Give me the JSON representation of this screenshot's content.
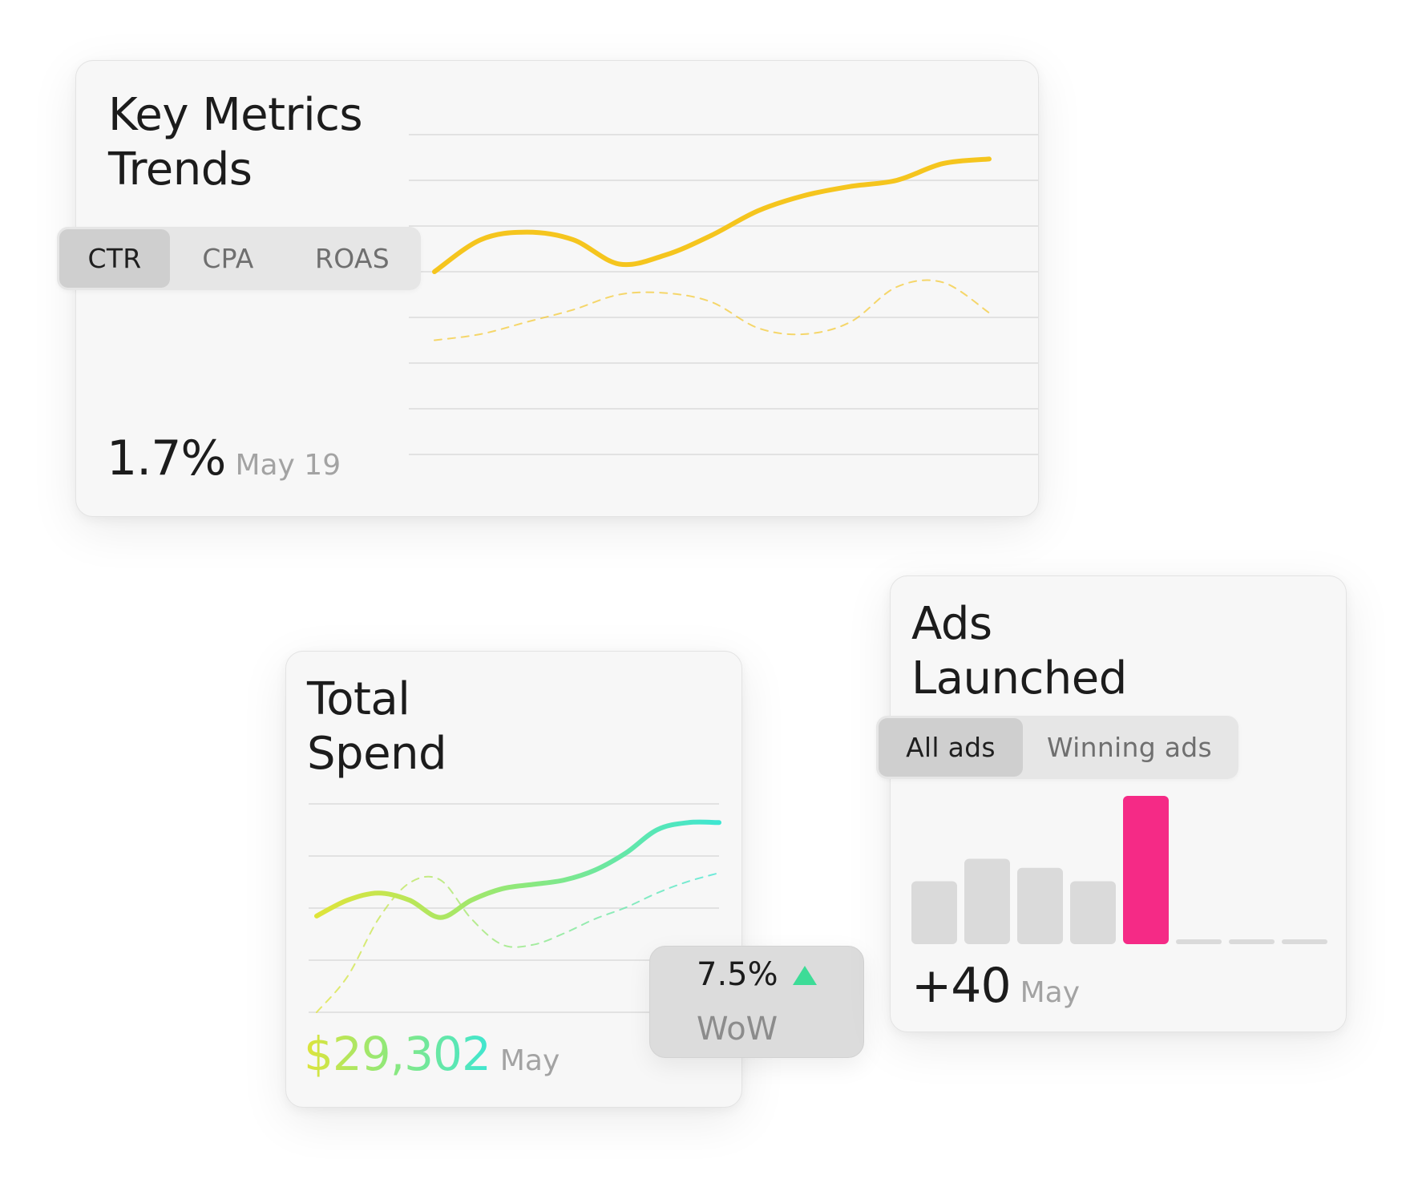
{
  "key_metrics": {
    "title_line1": "Key Metrics",
    "title_line2": "Trends",
    "tabs": [
      {
        "label": "CTR",
        "active": true
      },
      {
        "label": "CPA",
        "active": false
      },
      {
        "label": "ROAS",
        "active": false
      }
    ],
    "value": "1.7%",
    "value_date": "May 19",
    "line_color": "#F5C51E"
  },
  "total_spend": {
    "title_line1": "Total",
    "title_line2": "Spend",
    "value": "$29,302",
    "value_period": "May",
    "change_badge": {
      "value": "7.5%",
      "label": "WoW",
      "direction": "up",
      "up_color": "#3DDC97"
    },
    "gradient_colors": [
      "#DFE43A",
      "#8FE87A",
      "#3EE6D2"
    ]
  },
  "ads_launched": {
    "title_line1": "Ads",
    "title_line2": "Launched",
    "tabs": [
      {
        "label": "All ads",
        "active": true
      },
      {
        "label": "Winning ads",
        "active": false
      }
    ],
    "value": "+40",
    "value_period": "May",
    "highlight_color": "#F52A86",
    "bar_color": "#DADADA"
  },
  "chart_data": [
    {
      "type": "line",
      "title": "Key Metrics Trends",
      "x": [
        1,
        2,
        3,
        4,
        5,
        6,
        7,
        8,
        9,
        10,
        11,
        12,
        13
      ],
      "series": [
        {
          "style": "solid",
          "values": [
            20,
            41,
            46,
            41,
            25,
            31,
            44,
            60,
            70,
            76,
            80,
            91,
            94
          ]
        },
        {
          "style": "dashed",
          "values": [
            -25,
            -21,
            -13,
            -5,
            5,
            6,
            0,
            -17,
            -21,
            -13,
            10,
            13,
            -7
          ]
        }
      ],
      "grid": true
    },
    {
      "type": "line",
      "title": "Total Spend",
      "x": [
        1,
        2,
        3,
        4,
        5,
        6,
        7,
        8,
        9,
        10,
        11,
        12,
        13,
        14
      ],
      "series": [
        {
          "style": "solid",
          "values": [
            22,
            33,
            38,
            33,
            21,
            33,
            41,
            44,
            47,
            54,
            66,
            82,
            87,
            87
          ]
        },
        {
          "style": "dashed",
          "values": [
            -45,
            -20,
            20,
            45,
            47,
            20,
            2,
            2,
            10,
            20,
            28,
            38,
            46,
            52
          ]
        }
      ],
      "grid": true
    },
    {
      "type": "bar",
      "title": "Ads Launched",
      "categories": [
        "1",
        "2",
        "3",
        "4",
        "5",
        "6",
        "7",
        "8"
      ],
      "values": [
        14,
        19,
        17,
        14,
        33,
        0,
        0,
        0
      ],
      "highlight_index": 4
    }
  ]
}
